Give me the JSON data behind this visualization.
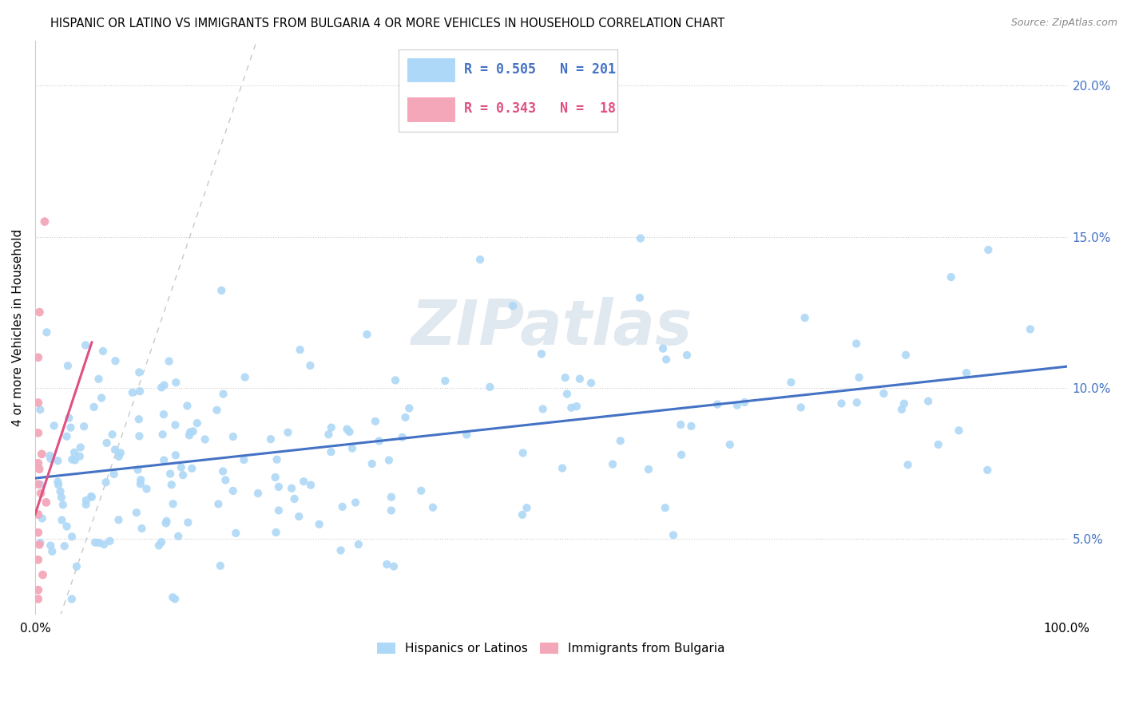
{
  "title": "HISPANIC OR LATINO VS IMMIGRANTS FROM BULGARIA 4 OR MORE VEHICLES IN HOUSEHOLD CORRELATION CHART",
  "source": "Source: ZipAtlas.com",
  "ylabel": "4 or more Vehicles in Household",
  "ytick_vals": [
    0.05,
    0.1,
    0.15,
    0.2
  ],
  "xlim": [
    0.0,
    1.0
  ],
  "ylim": [
    0.025,
    0.215
  ],
  "legend_blue_R": "0.505",
  "legend_blue_N": "201",
  "legend_pink_R": "0.343",
  "legend_pink_N": " 18",
  "blue_color": "#ADD8F7",
  "blue_line_color": "#4472C4",
  "pink_color": "#F4A7B9",
  "pink_line_color": "#E05080",
  "diagonal_color": "#C8C8C8",
  "watermark": "ZIPatlas",
  "blue_trend_start_y": 0.07,
  "blue_trend_end_y": 0.107,
  "pink_trend_start_y": 0.058,
  "pink_trend_end_x": 0.055,
  "pink_trend_end_y": 0.115
}
